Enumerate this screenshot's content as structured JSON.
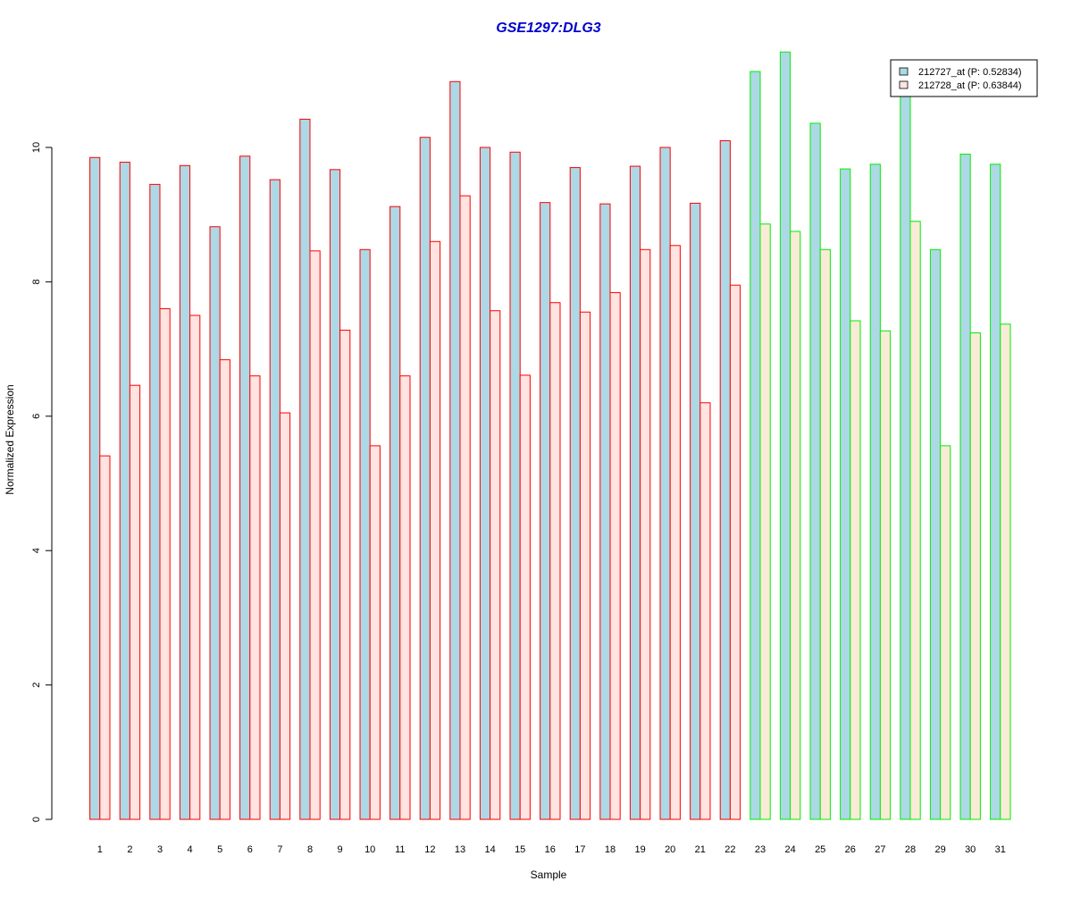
{
  "chart_data": {
    "type": "bar",
    "title": "GSE1297:DLG3",
    "xlabel": "Sample",
    "ylabel": "Normalized Expression",
    "ylim": [
      0,
      11.5
    ],
    "y_ticks": [
      0,
      2,
      4,
      6,
      8,
      10
    ],
    "categories": [
      "1",
      "2",
      "3",
      "4",
      "5",
      "6",
      "7",
      "8",
      "9",
      "10",
      "11",
      "12",
      "13",
      "14",
      "15",
      "16",
      "17",
      "18",
      "19",
      "20",
      "21",
      "22",
      "23",
      "24",
      "25",
      "26",
      "27",
      "28",
      "29",
      "30",
      "31"
    ],
    "series": [
      {
        "name": "212727_at (P: 0.52834)",
        "values": [
          9.85,
          9.78,
          9.45,
          9.73,
          8.82,
          9.87,
          9.52,
          10.42,
          9.67,
          8.48,
          9.12,
          10.15,
          10.98,
          10.0,
          9.93,
          9.18,
          9.7,
          9.16,
          9.72,
          10.0,
          9.17,
          10.1,
          11.13,
          11.42,
          10.36,
          9.68,
          9.75,
          10.8,
          8.48,
          9.9,
          9.75
        ]
      },
      {
        "name": "212728_at (P: 0.63844)",
        "values": [
          5.41,
          6.46,
          7.6,
          7.5,
          6.84,
          6.6,
          6.05,
          8.46,
          7.28,
          5.56,
          6.6,
          8.6,
          9.28,
          7.57,
          6.61,
          7.69,
          7.55,
          7.84,
          8.48,
          8.54,
          6.2,
          7.95,
          8.86,
          8.75,
          8.48,
          7.42,
          7.27,
          8.9,
          5.56,
          7.24,
          7.37
        ]
      }
    ],
    "group_split_after_index": 21,
    "colors": {
      "series1_fill": "#add8e6",
      "series2_fill": "#ffe4e1",
      "series2_fill_group2": "#faebd7",
      "group1_border": "#ff0000",
      "group2_border": "#00ee00",
      "title": "#0000cc",
      "axis": "#000000"
    },
    "legend_position": "top-right",
    "grid": false
  }
}
